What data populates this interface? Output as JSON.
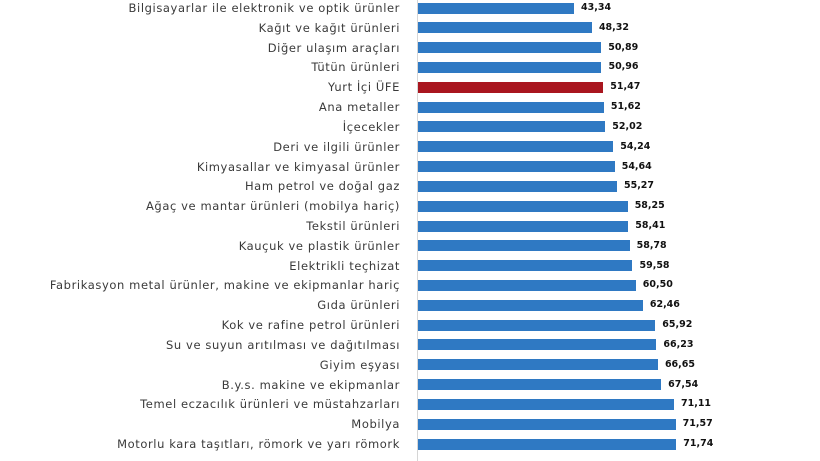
{
  "chart_data": {
    "type": "bar",
    "orientation": "horizontal",
    "grid": false,
    "categories": [
      "Bilgisayarlar ile elektronik ve optik ürünler",
      "Kağıt ve kağıt ürünleri",
      "Diğer ulaşım araçları",
      "Tütün ürünleri",
      "Yurt İçi ÜFE",
      "Ana metaller",
      "İçecekler",
      "Deri ve ilgili ürünler",
      "Kimyasallar ve kimyasal ürünler",
      "Ham petrol ve doğal gaz",
      "Ağaç ve mantar ürünleri (mobilya hariç)",
      "Tekstil ürünleri",
      "Kauçuk ve plastik ürünler",
      "Elektrikli teçhizat",
      "Fabrikasyon metal ürünler, makine ve ekipmanlar hariç",
      "Gıda ürünleri",
      "Kok ve rafine petrol ürünleri",
      "Su ve suyun arıtılması ve dağıtılması",
      "Giyim eşyası",
      "B.y.s. makine ve ekipmanlar",
      "Temel eczacılık ürünleri ve müstahzarları",
      "Mobilya",
      "Motorlu kara taşıtları, römork ve yarı römork"
    ],
    "values": [
      43.34,
      48.32,
      50.89,
      50.96,
      51.47,
      51.62,
      52.02,
      54.24,
      54.64,
      55.27,
      58.25,
      58.41,
      58.78,
      59.58,
      60.5,
      62.46,
      65.92,
      66.23,
      66.65,
      67.54,
      71.11,
      71.57,
      71.74
    ],
    "value_labels": [
      "43,34",
      "48,32",
      "50,89",
      "50,96",
      "51,47",
      "51,62",
      "52,02",
      "54,24",
      "54,64",
      "55,27",
      "58,25",
      "58,41",
      "58,78",
      "59,58",
      "60,50",
      "62,46",
      "65,92",
      "66,23",
      "66,65",
      "67,54",
      "71,11",
      "71,57",
      "71,74"
    ],
    "bar_colors": [
      "#2F79C3",
      "#2F79C3",
      "#2F79C3",
      "#2F79C3",
      "#A9161F",
      "#2F79C3",
      "#2F79C3",
      "#2F79C3",
      "#2F79C3",
      "#2F79C3",
      "#2F79C3",
      "#2F79C3",
      "#2F79C3",
      "#2F79C3",
      "#2F79C3",
      "#2F79C3",
      "#2F79C3",
      "#2F79C3",
      "#2F79C3",
      "#2F79C3",
      "#2F79C3",
      "#2F79C3",
      "#2F79C3"
    ]
  },
  "colors": {
    "bar": "#2F79C3",
    "highlight": "#A9161F",
    "label_text": "#3a3a3a",
    "value_text": "#111111"
  }
}
